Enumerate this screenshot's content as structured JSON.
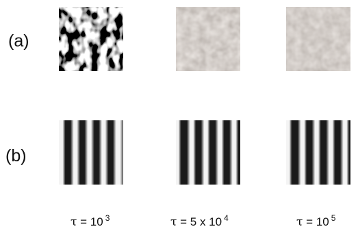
{
  "rows": {
    "a": {
      "label": "(a)"
    },
    "b": {
      "label": "(b)"
    }
  },
  "captions": [
    {
      "symbol": "τ",
      "text": " = 10",
      "exp": "3"
    },
    {
      "symbol": "τ",
      "text": " = 5 x 10",
      "exp": "4"
    },
    {
      "symbol": "τ",
      "text": " = 10",
      "exp": "5"
    }
  ]
}
